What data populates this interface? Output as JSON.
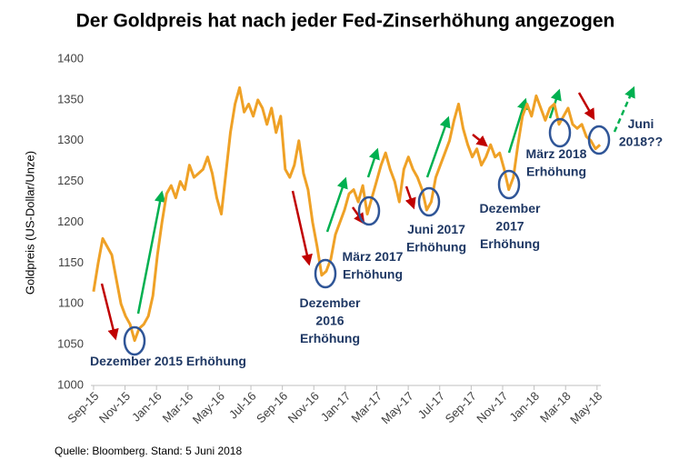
{
  "chart_data": {
    "type": "line",
    "title": "Der Goldpreis hat nach jeder Fed-Zinserhöhung angezogen",
    "y_label": "Goldpreis (US-Dollar/Unze)",
    "source": "Quelle: Bloomberg. Stand: 5 Juni 2018",
    "xlim": [
      -0.17,
      32.24
    ],
    "ylim": [
      1000,
      1400
    ],
    "yticks": [
      1000,
      1050,
      1100,
      1150,
      1200,
      1250,
      1300,
      1350,
      1400
    ],
    "xticks": [
      {
        "value": 0,
        "label": "Sep-15"
      },
      {
        "value": 2,
        "label": "Nov-15"
      },
      {
        "value": 4,
        "label": "Jan-16"
      },
      {
        "value": 6,
        "label": "Mar-16"
      },
      {
        "value": 8,
        "label": "May-16"
      },
      {
        "value": 10,
        "label": "Jul-16"
      },
      {
        "value": 12,
        "label": "Sep-16"
      },
      {
        "value": 14,
        "label": "Nov-16"
      },
      {
        "value": 16,
        "label": "Jan-17"
      },
      {
        "value": 18,
        "label": "Mar-17"
      },
      {
        "value": 20,
        "label": "May-17"
      },
      {
        "value": 22,
        "label": "Jul-17"
      },
      {
        "value": 24,
        "label": "Sep-17"
      },
      {
        "value": 26,
        "label": "Nov-17"
      },
      {
        "value": 28,
        "label": "Jan-18"
      },
      {
        "value": 30,
        "label": "Mar-18"
      },
      {
        "value": 32,
        "label": "May-18"
      }
    ],
    "grid": false,
    "x": [
      0,
      0.29,
      0.58,
      0.87,
      1.16,
      1.45,
      1.74,
      2.03,
      2.32,
      2.61,
      2.9,
      3.19,
      3.48,
      3.77,
      4.06,
      4.35,
      4.64,
      4.93,
      5.22,
      5.51,
      5.8,
      6.09,
      6.38,
      6.67,
      6.96,
      7.25,
      7.54,
      7.83,
      8.12,
      8.41,
      8.7,
      8.99,
      9.28,
      9.57,
      9.86,
      10.15,
      10.44,
      10.73,
      11.02,
      11.31,
      11.6,
      11.89,
      12.18,
      12.47,
      12.76,
      13.05,
      13.34,
      13.63,
      13.92,
      14.21,
      14.5,
      14.79,
      15.08,
      15.37,
      15.66,
      15.95,
      16.24,
      16.53,
      16.82,
      17.11,
      17.4,
      17.69,
      17.98,
      18.27,
      18.56,
      18.85,
      19.14,
      19.43,
      19.72,
      20.01,
      20.3,
      20.59,
      20.88,
      21.17,
      21.46,
      21.75,
      22.04,
      22.33,
      22.62,
      22.91,
      23.2,
      23.49,
      23.78,
      24.07,
      24.36,
      24.65,
      24.94,
      25.23,
      25.52,
      25.81,
      26.1,
      26.39,
      26.68,
      26.97,
      27.26,
      27.55,
      27.84,
      28.13,
      28.42,
      28.71,
      29,
      29.29,
      29.58,
      29.87,
      30.16,
      30.45,
      30.74,
      31.03,
      31.32,
      31.61,
      31.9,
      32.19
    ],
    "series": [
      {
        "color": "#EFA126",
        "values": [
          1115,
          1150,
          1180,
          1170,
          1160,
          1130,
          1100,
          1085,
          1075,
          1055,
          1070,
          1075,
          1085,
          1110,
          1160,
          1200,
          1235,
          1245,
          1230,
          1250,
          1240,
          1270,
          1255,
          1260,
          1265,
          1280,
          1260,
          1230,
          1210,
          1260,
          1310,
          1345,
          1365,
          1335,
          1345,
          1330,
          1350,
          1340,
          1320,
          1340,
          1310,
          1330,
          1265,
          1255,
          1270,
          1300,
          1260,
          1240,
          1200,
          1170,
          1135,
          1140,
          1155,
          1185,
          1200,
          1215,
          1235,
          1240,
          1225,
          1245,
          1210,
          1230,
          1250,
          1270,
          1285,
          1265,
          1250,
          1225,
          1265,
          1280,
          1265,
          1255,
          1240,
          1215,
          1225,
          1255,
          1270,
          1285,
          1300,
          1325,
          1345,
          1315,
          1295,
          1280,
          1290,
          1270,
          1280,
          1295,
          1280,
          1285,
          1265,
          1240,
          1255,
          1295,
          1330,
          1345,
          1330,
          1355,
          1340,
          1325,
          1340,
          1345,
          1320,
          1330,
          1340,
          1320,
          1315,
          1320,
          1305,
          1300,
          1290,
          1295
        ]
      }
    ],
    "annotations": [
      {
        "lines": [
          "Dezember 2015 Erhöhung"
        ]
      },
      {
        "lines": [
          "Dezember",
          "2016",
          "Erhöhung"
        ]
      },
      {
        "lines": [
          "März 2017",
          "Erhöhung"
        ]
      },
      {
        "lines": [
          "Juni 2017",
          "Erhöhung"
        ]
      },
      {
        "lines": [
          "Dezember",
          "2017",
          "Erhöhung"
        ]
      },
      {
        "lines": [
          "März 2018",
          "Erhöhung"
        ]
      },
      {
        "lines": [
          "Juni",
          "2018??"
        ]
      }
    ]
  }
}
